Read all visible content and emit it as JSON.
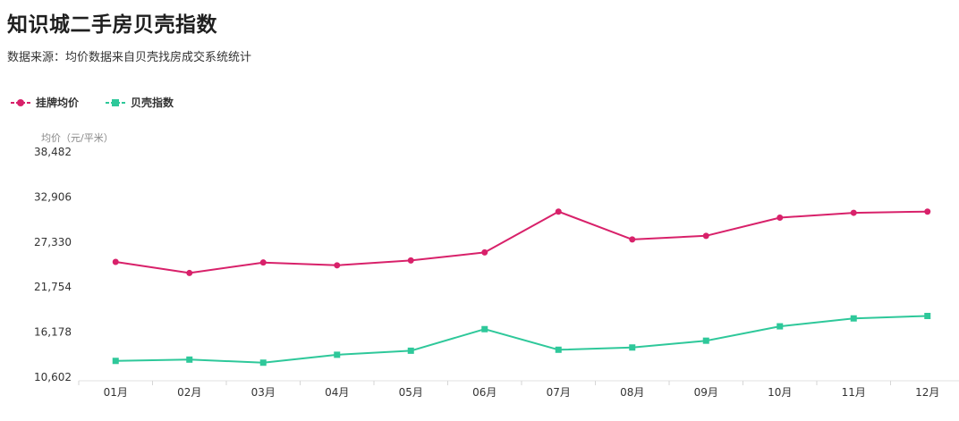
{
  "header": {
    "title": "知识城二手房贝壳指数",
    "subtitle": "数据来源：均价数据来自贝壳找房成交系统统计"
  },
  "chart_data": {
    "type": "line",
    "title": "知识城二手房贝壳指数",
    "subtitle": "数据来源：均价数据来自贝壳找房成交系统统计",
    "ylabel": "均价（元/平米）",
    "xlabel": "",
    "categories": [
      "01月",
      "02月",
      "03月",
      "04月",
      "05月",
      "06月",
      "07月",
      "08月",
      "09月",
      "10月",
      "11月",
      "12月"
    ],
    "yticks": [
      10602,
      16178,
      21754,
      27330,
      32906,
      38482
    ],
    "ytick_labels": [
      "10,602",
      "16,178",
      "21,754",
      "27,330",
      "32,906",
      "38,482"
    ],
    "ylim": [
      10602,
      38482
    ],
    "legend_position": "top-left",
    "grid": false,
    "series": [
      {
        "name": "挂牌均价",
        "color": "#d8216a",
        "marker": "circle",
        "values": [
          24870,
          23500,
          24800,
          24450,
          25050,
          26050,
          31100,
          27650,
          28100,
          30350,
          30950,
          31100
        ]
      },
      {
        "name": "贝壳指数",
        "color": "#2ec89a",
        "marker": "square",
        "values": [
          12620,
          12780,
          12400,
          13380,
          13880,
          16550,
          14000,
          14280,
          15120,
          16900,
          17880,
          18180
        ]
      }
    ]
  }
}
